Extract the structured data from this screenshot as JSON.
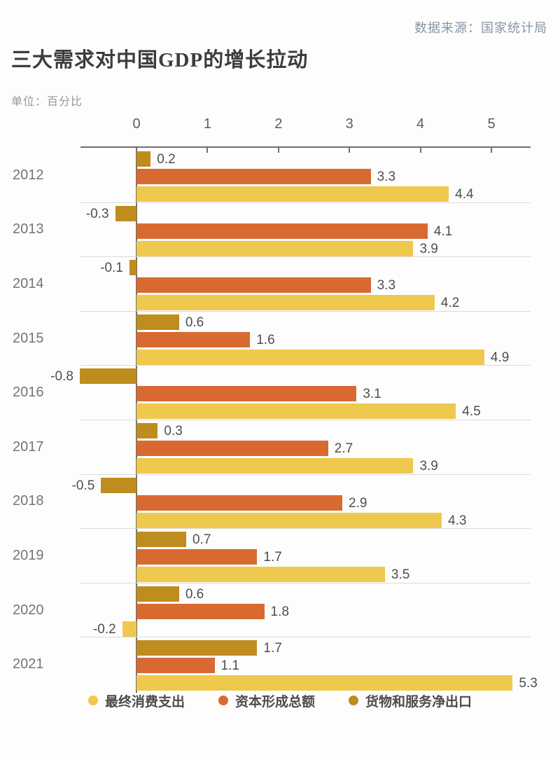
{
  "header": {
    "source": "数据来源：国家统计局"
  },
  "title": "三大需求对中国GDP的增长拉动",
  "subtitle": "单位：百分比",
  "colors": {
    "final_consumption": "#efc94d",
    "capital_formation": "#d86a31",
    "net_exports": "#bf8c1e",
    "axis": "#6e6e6e",
    "separator": "#dbdbdb",
    "source_text": "#8795a5"
  },
  "chart_data": {
    "type": "bar",
    "orientation": "horizontal",
    "title": "三大需求对中国GDP的增长拉动",
    "unit_label": "单位：百分比",
    "source": "数据来源：国家统计局",
    "categories": [
      "2012",
      "2013",
      "2014",
      "2015",
      "2016",
      "2017",
      "2018",
      "2019",
      "2020",
      "2021"
    ],
    "series": [
      {
        "key": "final-consumption",
        "name": "最终消费支出",
        "color": "#efc94d",
        "values": [
          4.4,
          3.9,
          4.2,
          4.9,
          4.5,
          3.9,
          4.3,
          3.5,
          -0.2,
          5.3
        ]
      },
      {
        "key": "capital-formation",
        "name": "资本形成总额",
        "color": "#d86a31",
        "values": [
          3.3,
          4.1,
          3.3,
          1.6,
          3.1,
          2.7,
          2.9,
          1.7,
          1.8,
          1.1
        ]
      },
      {
        "key": "net-exports",
        "name": "货物和服务净出口",
        "color": "#bf8c1e",
        "values": [
          0.2,
          -0.3,
          -0.1,
          0.6,
          -0.8,
          0.3,
          -0.5,
          0.7,
          0.6,
          1.7
        ]
      }
    ],
    "bar_order_top_to_bottom": [
      "货物和服务净出口",
      "资本形成总额",
      "最终消费支出"
    ],
    "x_ticks": [
      0,
      1,
      2,
      3,
      4,
      5
    ],
    "xlim": [
      -0.9,
      5.55
    ],
    "value_labels": "outside-end, one decimal",
    "grid": "horizontal row separators only",
    "legend_position": "bottom-center",
    "axis_position": "top"
  }
}
